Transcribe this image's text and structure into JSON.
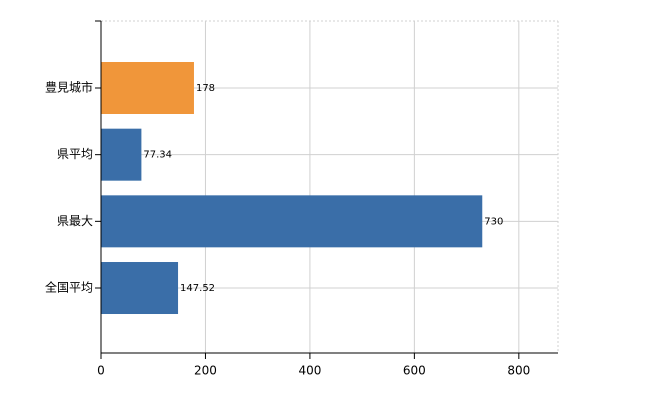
{
  "chart_data": {
    "type": "bar",
    "orientation": "horizontal",
    "categories": [
      "豊見城市",
      "県平均",
      "県最大",
      "全国平均"
    ],
    "values": [
      178,
      77.34,
      730,
      147.52
    ],
    "colors": [
      "#f0963a",
      "#3a6ea8",
      "#3a6ea8",
      "#3a6ea8"
    ],
    "xlim": [
      0,
      875
    ],
    "xticks": [
      0,
      200,
      400,
      600,
      800
    ],
    "grid": true
  }
}
